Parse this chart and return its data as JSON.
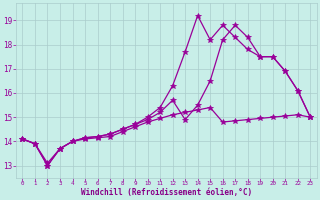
{
  "background_color": "#c8eee8",
  "grid_color": "#aacccc",
  "line_color": "#990099",
  "xlabel": "Windchill (Refroidissement éolien,°C)",
  "xlabel_color": "#880088",
  "xlim_min": -0.5,
  "xlim_max": 23.5,
  "ylim_min": 12.5,
  "ylim_max": 19.7,
  "yticks": [
    13,
    14,
    15,
    16,
    17,
    18,
    19
  ],
  "xticks": [
    0,
    1,
    2,
    3,
    4,
    5,
    6,
    7,
    8,
    9,
    10,
    11,
    12,
    13,
    14,
    15,
    16,
    17,
    18,
    19,
    20,
    21,
    22,
    23
  ],
  "lines": [
    {
      "x": [
        0,
        1,
        2,
        3,
        4,
        5,
        6,
        7,
        8,
        9,
        10,
        11,
        12,
        13,
        14,
        15,
        16,
        17,
        18,
        19,
        20,
        21,
        22,
        23
      ],
      "y": [
        14.1,
        13.9,
        13.0,
        13.7,
        14.0,
        14.15,
        14.2,
        14.3,
        14.5,
        14.7,
        15.0,
        15.4,
        16.3,
        17.7,
        19.2,
        18.2,
        18.8,
        18.3,
        17.8,
        17.5,
        17.5,
        16.9,
        16.1,
        15.0
      ]
    },
    {
      "x": [
        0,
        1,
        2,
        3,
        4,
        5,
        6,
        7,
        8,
        9,
        10,
        11,
        12,
        13,
        14,
        15,
        16,
        17,
        18,
        19,
        20,
        21,
        22,
        23
      ],
      "y": [
        14.1,
        13.9,
        13.0,
        13.7,
        14.0,
        14.15,
        14.2,
        14.3,
        14.5,
        14.7,
        14.9,
        15.2,
        15.7,
        14.9,
        15.5,
        16.5,
        18.2,
        18.8,
        18.3,
        17.5,
        17.5,
        16.9,
        16.1,
        15.0
      ]
    },
    {
      "x": [
        0,
        1,
        2,
        3,
        4,
        5,
        6,
        7,
        8,
        9,
        10,
        11,
        12,
        13,
        14,
        15,
        16,
        17,
        18,
        19,
        20,
        21,
        22,
        23
      ],
      "y": [
        14.1,
        13.9,
        13.1,
        13.7,
        14.0,
        14.1,
        14.15,
        14.2,
        14.4,
        14.6,
        14.8,
        14.95,
        15.1,
        15.2,
        15.3,
        15.4,
        14.8,
        14.85,
        14.9,
        14.95,
        15.0,
        15.05,
        15.1,
        15.0
      ]
    }
  ],
  "marker_style": "*",
  "markersize": 4.0,
  "linewidth": 0.9
}
